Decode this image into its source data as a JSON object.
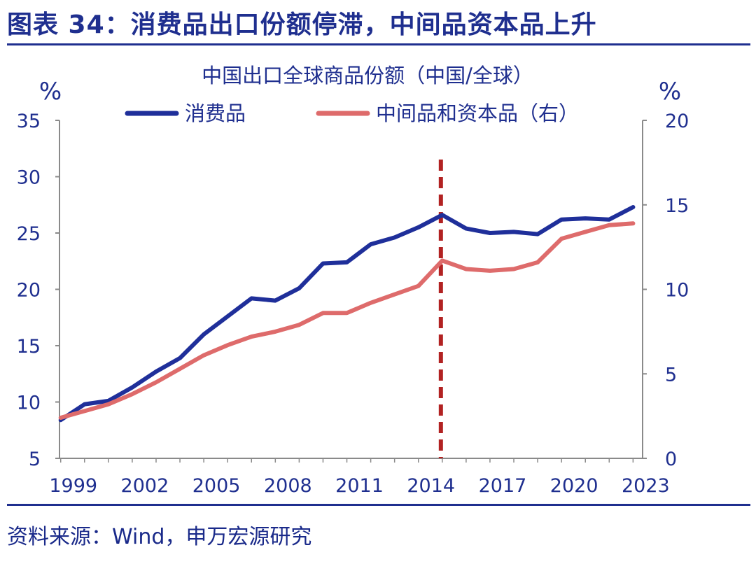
{
  "figure": {
    "title": "图表 34：消费品出口份额停滞，中间品资本品上升",
    "source": "资料来源：Wind，申万宏源研究"
  },
  "chart_data": {
    "type": "line",
    "title": "中国出口全球商品份额（中国/全球）",
    "left_unit": "%",
    "right_unit": "%",
    "x": [
      1999,
      2000,
      2001,
      2002,
      2003,
      2004,
      2005,
      2006,
      2007,
      2008,
      2009,
      2010,
      2011,
      2012,
      2013,
      2014,
      2015,
      2016,
      2017,
      2018,
      2019,
      2020,
      2021,
      2022,
      2023
    ],
    "x_tick_labels": [
      "1999",
      "2002",
      "2005",
      "2008",
      "2011",
      "2014",
      "2017",
      "2020",
      "2023"
    ],
    "x_ticks": [
      1999,
      2002,
      2005,
      2008,
      2011,
      2014,
      2017,
      2020,
      2023
    ],
    "ylim_left": [
      5,
      35
    ],
    "yticks_left": [
      "5",
      "10",
      "15",
      "20",
      "25",
      "30",
      "35"
    ],
    "ylim_right": [
      0,
      20
    ],
    "yticks_right": [
      "0",
      "5",
      "10",
      "15",
      "20"
    ],
    "legend_placement": "top",
    "series": [
      {
        "name": "消费品",
        "axis": "left",
        "color": "#1f2f9a",
        "values": [
          8.4,
          9.8,
          10.1,
          11.3,
          12.7,
          13.9,
          16.0,
          17.6,
          19.2,
          19.0,
          20.1,
          22.3,
          22.4,
          24.0,
          24.6,
          25.5,
          26.6,
          25.4,
          25.0,
          25.1,
          24.9,
          26.2,
          26.3,
          26.2,
          27.3
        ]
      },
      {
        "name": "中间品和资本品（右）",
        "axis": "right",
        "color": "#de6b6b",
        "values": [
          2.4,
          2.8,
          3.2,
          3.8,
          4.5,
          5.3,
          6.1,
          6.7,
          7.2,
          7.5,
          7.9,
          8.6,
          8.6,
          9.2,
          9.7,
          10.2,
          11.7,
          11.2,
          11.1,
          11.2,
          11.6,
          13.0,
          13.4,
          13.8,
          13.9
        ]
      }
    ],
    "reference_line": {
      "x": 2015,
      "style": "dashed",
      "color": "#b22222"
    },
    "grid": false
  }
}
